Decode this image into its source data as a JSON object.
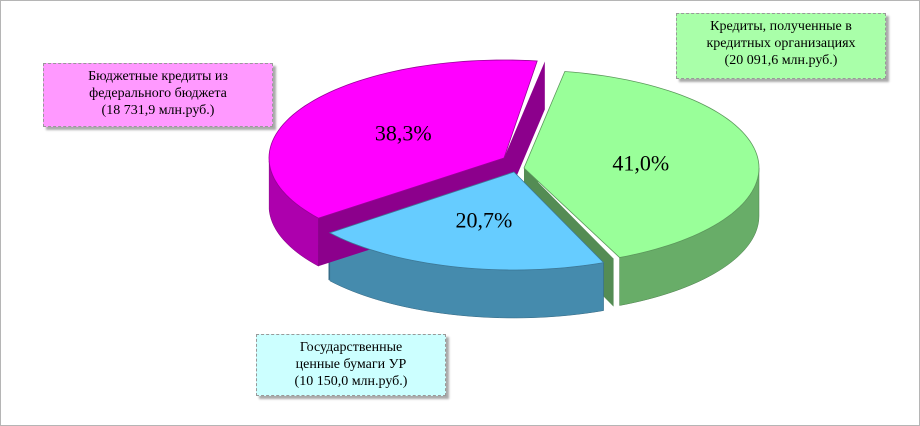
{
  "chart_data": {
    "type": "pie3d",
    "categories": [
      "Кредиты, полученные в\nкредитных организациях\n(20 091,6 млн.руб.)",
      "Государственные\nценные бумаги  УР\n(10 150,0 млн.руб.)",
      "Бюджетные кредиты  из\nфедерального бюджета\n(18 731,9 млн.руб.)"
    ],
    "values": [
      41.0,
      20.7,
      38.3
    ],
    "value_labels": [
      "41,0%",
      "20,7%",
      "38,3%"
    ],
    "colors": [
      "#99ff99",
      "#66ccff",
      "#ff00ff"
    ],
    "label_colors": [
      "#a9ffa9",
      "#ccffff",
      "#ff99ff"
    ]
  }
}
